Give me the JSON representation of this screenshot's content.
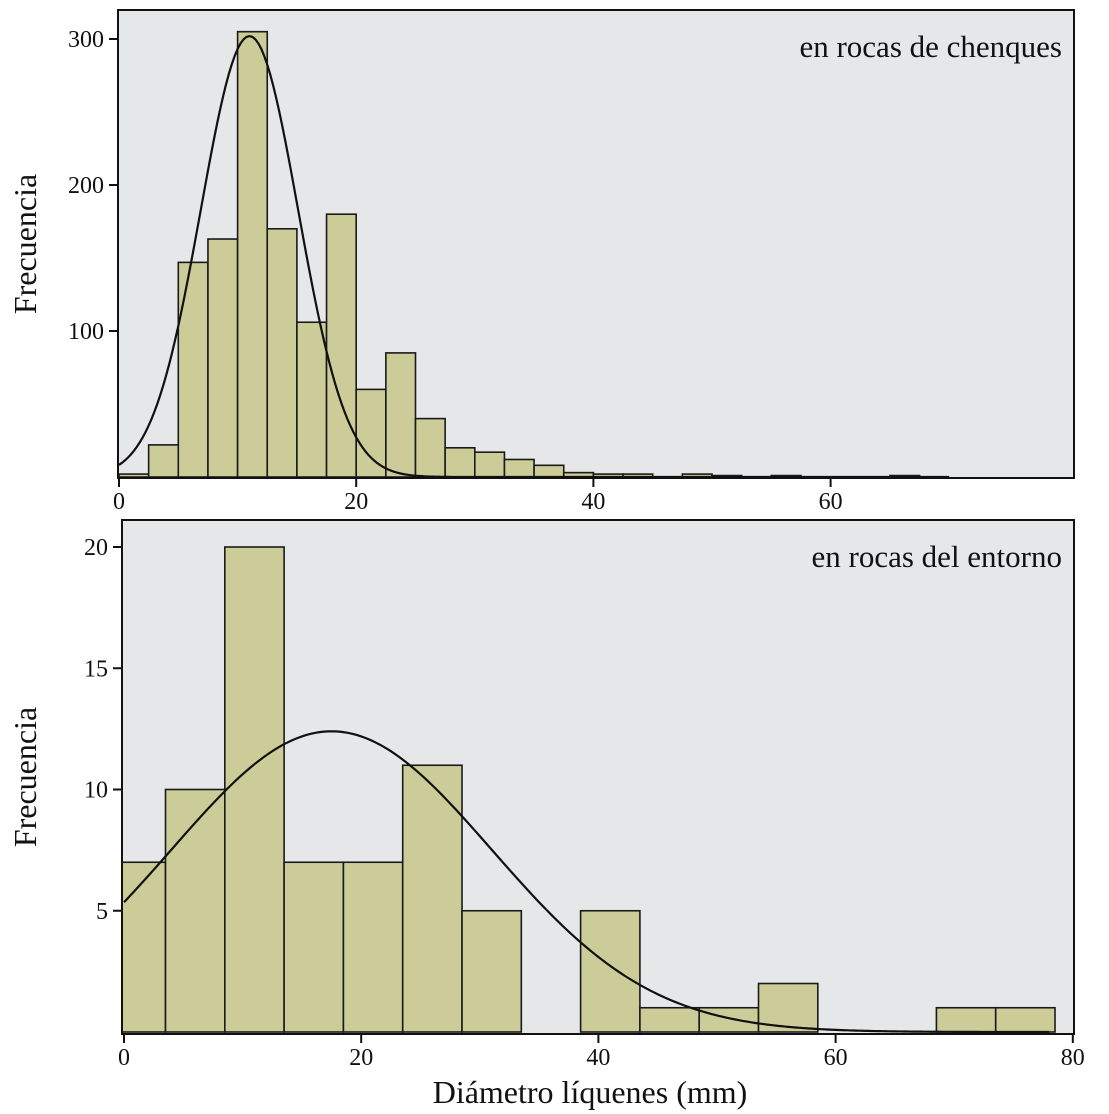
{
  "chart_data": [
    {
      "type": "bar",
      "subtype": "histogram",
      "panel_label": "en rocas de chenques",
      "xlabel": "",
      "ylabel": "Frecuencia",
      "bin_width": 2.5,
      "bins_start": [
        0,
        2.5,
        5,
        7.5,
        10,
        12.5,
        15,
        17.5,
        20,
        22.5,
        25,
        27.5,
        30,
        32.5,
        35,
        37.5,
        40,
        42.5,
        45,
        47.5,
        50,
        52.5,
        55,
        57.5,
        60,
        62.5,
        65,
        67.5
      ],
      "values": [
        2,
        22,
        147,
        163,
        305,
        170,
        106,
        180,
        60,
        85,
        40,
        20,
        17,
        12,
        8,
        3,
        2,
        2,
        0,
        2,
        1,
        0,
        1,
        0,
        0,
        0,
        1,
        0
      ],
      "normal_curve": {
        "mean": 11,
        "sd": 4.1,
        "peak": 302
      },
      "xlim": [
        0,
        80
      ],
      "ylim": [
        0,
        320
      ],
      "xticks": [
        0,
        20,
        40,
        60
      ],
      "xtick_labels": [
        "0",
        "20",
        "40",
        "60"
      ],
      "yticks": [
        100,
        200,
        300
      ],
      "ytick_labels": [
        "100",
        "200",
        "300"
      ],
      "colors": {
        "bar_fill": "#cccc99",
        "bar_edge": "#1a1a1a",
        "plot_bg": "#e6e7e8",
        "curve": "#111111"
      }
    },
    {
      "type": "bar",
      "subtype": "histogram",
      "panel_label": "en rocas del entorno",
      "xlabel": "Diámetro líquenes (mm)",
      "ylabel": "Frecuencia",
      "bin_width": 5,
      "bins_start": [
        -1.5,
        3.5,
        8.5,
        13.5,
        18.5,
        23.5,
        28.5,
        33.5,
        38.5,
        43.5,
        48.5,
        53.5,
        58.5,
        63.5,
        68.5,
        73.5
      ],
      "values": [
        7,
        10,
        20,
        7,
        7,
        11,
        5,
        0,
        5,
        1,
        1,
        2,
        0,
        0,
        1,
        1
      ],
      "normal_curve": {
        "mean": 17.5,
        "sd": 13.5,
        "peak": 12.4
      },
      "xlim": [
        0,
        80
      ],
      "ylim": [
        0,
        20.5
      ],
      "xticks": [
        0,
        20,
        40,
        60,
        80
      ],
      "xtick_labels": [
        "0",
        "20",
        "40",
        "60",
        "80"
      ],
      "yticks": [
        5,
        10,
        15,
        20
      ],
      "ytick_labels": [
        "5",
        "10",
        "15",
        "20"
      ],
      "colors": {
        "bar_fill": "#cccc99",
        "bar_edge": "#1a1a1a",
        "plot_bg": "#e6e7e8",
        "curve": "#111111"
      }
    }
  ]
}
